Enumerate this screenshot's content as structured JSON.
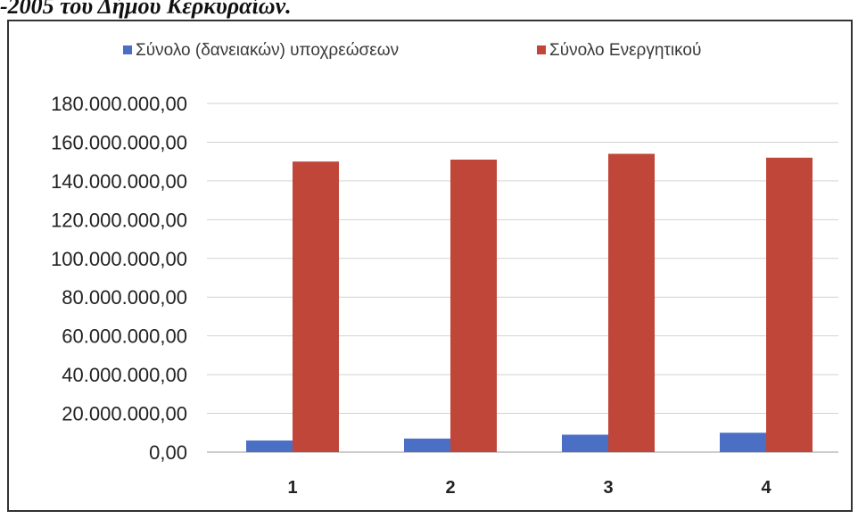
{
  "caption": "-2005 του Δήμου Κερκυραίων.",
  "chart_data": {
    "type": "bar",
    "categories": [
      "1",
      "2",
      "3",
      "4"
    ],
    "series": [
      {
        "name": "Σύνολο (δανειακών) υποχρεώσεων",
        "values": [
          6000000,
          7000000,
          9000000,
          10000000
        ],
        "color": "#4a6fc4"
      },
      {
        "name": "Σύνολο Ενεργητικού",
        "values": [
          150000000,
          151000000,
          154000000,
          152000000
        ],
        "color": "#c0463a"
      }
    ],
    "ylim": [
      0,
      180000000
    ],
    "yticks": [
      "0,00",
      "20.000.000,00",
      "40.000.000,00",
      "60.000.000,00",
      "80.000.000,00",
      "100.000.000,00",
      "120.000.000,00",
      "140.000.000,00",
      "160.000.000,00",
      "180.000.000,00"
    ],
    "grid": true,
    "legend": "top"
  }
}
